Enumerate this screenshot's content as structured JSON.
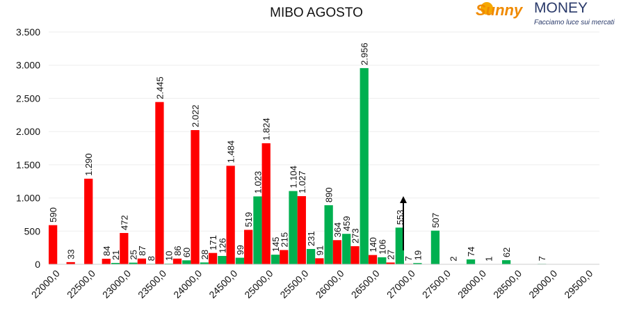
{
  "logo": {
    "name": "Sunny",
    "brand": "MONEY",
    "tagline": "Facciamo luce sui mercati"
  },
  "chart_data": {
    "type": "bar",
    "title": "MIBO AGOSTO",
    "categories": [
      "22000,0",
      null,
      "22500,0",
      null,
      "23000,0",
      null,
      "23500,0",
      null,
      "24000,0",
      null,
      "24500,0",
      null,
      "25000,0",
      null,
      "25500,0",
      null,
      "26000,0",
      null,
      "26500,0",
      null,
      "27000,0",
      null,
      "27500,0",
      null,
      "28000,0",
      null,
      "28500,0",
      null,
      "29000,0",
      null,
      "29500,0"
    ],
    "series": [
      {
        "color": "#ff0000",
        "values": [
          590,
          33,
          1290,
          84,
          472,
          87,
          2445,
          86,
          2022,
          171,
          1484,
          519,
          1824,
          215,
          1027,
          91,
          364,
          273,
          140,
          27,
          7,
          null,
          null,
          null,
          null,
          null,
          null,
          null,
          null,
          null,
          null
        ],
        "value_labels": [
          "590",
          "33",
          "1.290",
          "84",
          "472",
          "87",
          "2.445",
          "86",
          "2.022",
          "171",
          "1.484",
          "519",
          "1.824",
          "215",
          "1.027",
          "91",
          "364",
          "273",
          "140",
          "27",
          "7",
          null,
          null,
          null,
          null,
          null,
          null,
          null,
          null,
          null,
          null
        ]
      },
      {
        "color": "#00b050",
        "values": [
          null,
          null,
          null,
          21,
          25,
          8,
          10,
          60,
          28,
          126,
          99,
          1023,
          145,
          1104,
          231,
          890,
          459,
          2956,
          106,
          553,
          19,
          507,
          2,
          74,
          1,
          62,
          null,
          7,
          null,
          null,
          null
        ],
        "value_labels": [
          null,
          null,
          null,
          "21",
          "25",
          "8",
          "10",
          "60",
          "28",
          "126",
          "99",
          "1.023",
          "145",
          "1.104",
          "231",
          "890",
          "459",
          "2.956",
          "106",
          "553",
          "19",
          "507",
          "2",
          "74",
          "1",
          "62",
          null,
          "7",
          null,
          null,
          null
        ]
      }
    ],
    "ylim": [
      0,
      3500
    ],
    "yticks": [
      0,
      500,
      {
        "value": 1000,
        "label": "1.000"
      },
      {
        "value": 1500,
        "label": "1.500"
      },
      {
        "value": 2000,
        "label": "2.000"
      },
      {
        "value": 2500,
        "label": "2.500"
      },
      {
        "value": 3000,
        "label": "3.000"
      },
      {
        "value": 3500,
        "label": "3.500"
      }
    ],
    "grid": true
  }
}
